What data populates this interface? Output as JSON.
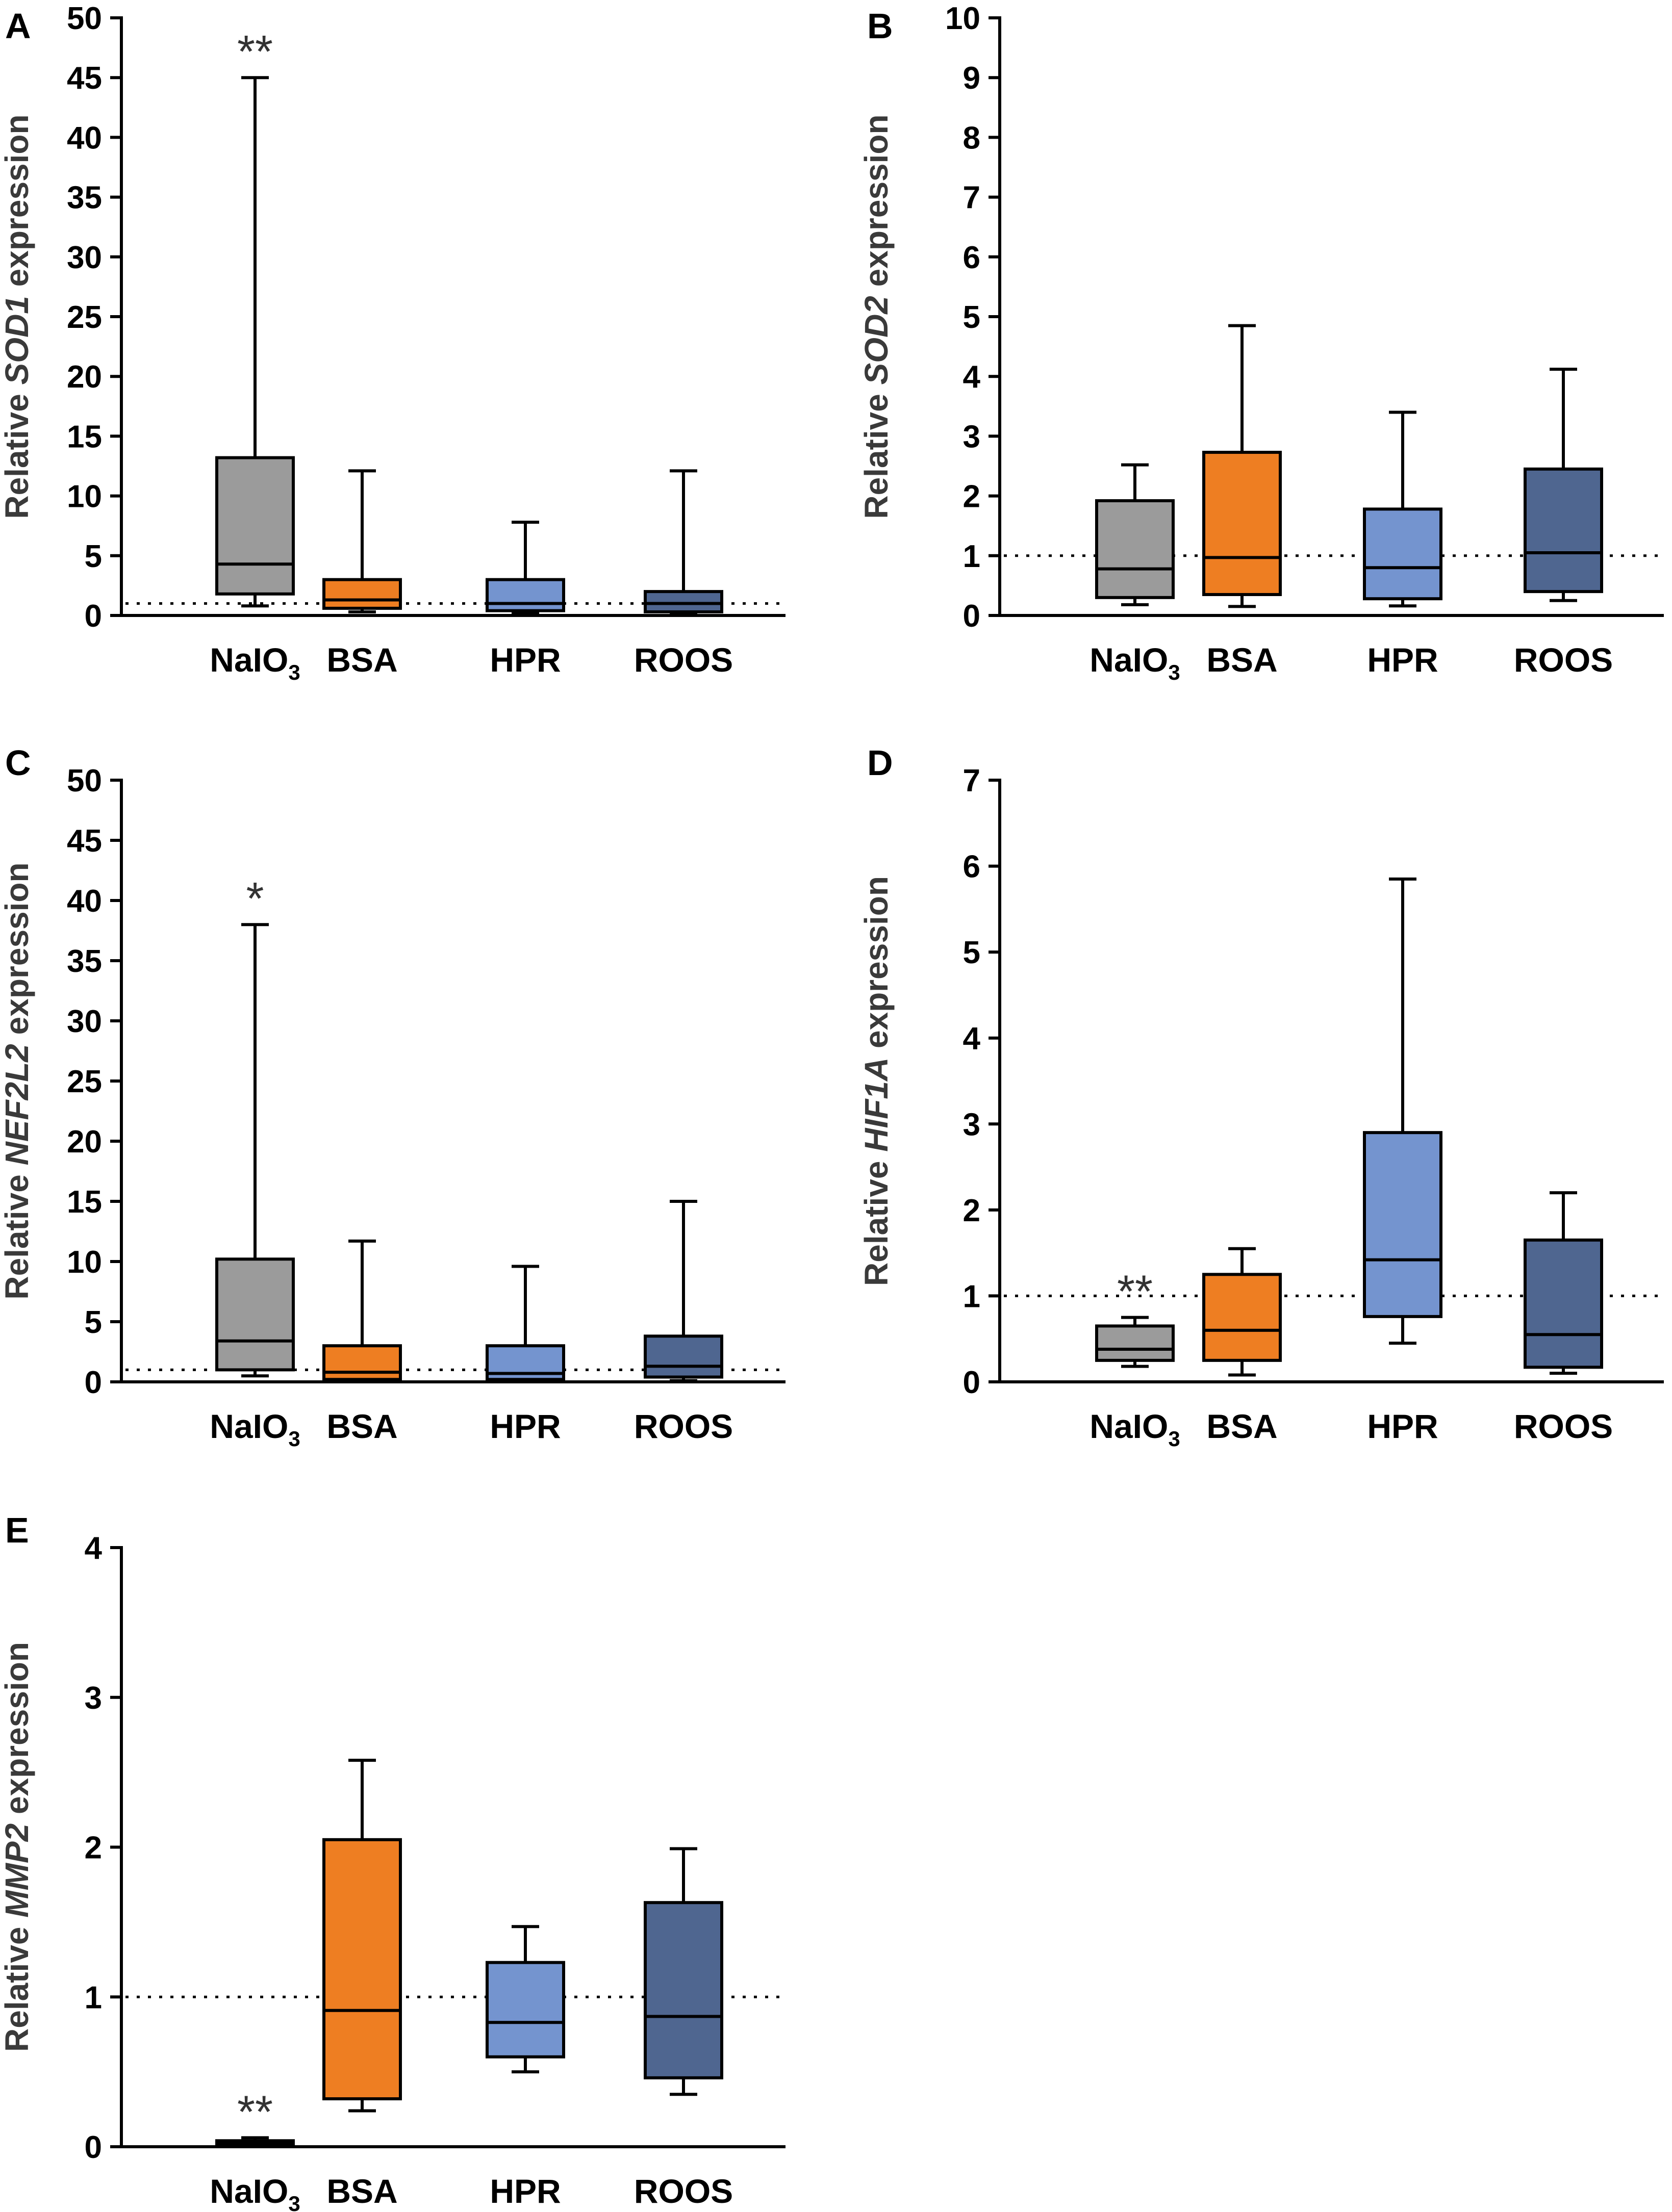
{
  "chart_data": [
    {
      "panel": "A",
      "type": "box",
      "ylabel_pre": "Relative ",
      "ylabel_gene": "SOD1",
      "ylabel_post": " expression",
      "ylim": [
        0,
        50
      ],
      "yticks": [
        0,
        5,
        10,
        15,
        20,
        25,
        30,
        35,
        40,
        45,
        50
      ],
      "reference_line": 1,
      "categories": [
        "NaIO3",
        "BSA",
        "HPR",
        "ROOS"
      ],
      "boxes": [
        {
          "category": "NaIO3",
          "min": 0.8,
          "q1": 1.8,
          "median": 4.3,
          "q3": 13.2,
          "max": 45.0,
          "color": "#9b9b9b",
          "annotation": "**"
        },
        {
          "category": "BSA",
          "min": 0.3,
          "q1": 0.6,
          "median": 1.3,
          "q3": 3.0,
          "max": 12.1,
          "color": "#ee7e22",
          "annotation": ""
        },
        {
          "category": "HPR",
          "min": 0.2,
          "q1": 0.4,
          "median": 1.0,
          "q3": 3.0,
          "max": 7.8,
          "color": "#7494cf",
          "annotation": ""
        },
        {
          "category": "ROOS",
          "min": 0.1,
          "q1": 0.3,
          "median": 1.0,
          "q3": 2.0,
          "max": 12.1,
          "color": "#4f6690",
          "annotation": ""
        }
      ]
    },
    {
      "panel": "B",
      "type": "box",
      "ylabel_pre": "Relative ",
      "ylabel_gene": "SOD2",
      "ylabel_post": " expression",
      "ylim": [
        0,
        10
      ],
      "yticks": [
        0,
        1,
        2,
        3,
        4,
        5,
        6,
        7,
        8,
        9,
        10
      ],
      "reference_line": 1,
      "categories": [
        "NaIO3",
        "BSA",
        "HPR",
        "ROOS"
      ],
      "boxes": [
        {
          "category": "NaIO3",
          "min": 0.18,
          "q1": 0.3,
          "median": 0.78,
          "q3": 1.92,
          "max": 2.52,
          "color": "#9b9b9b",
          "annotation": ""
        },
        {
          "category": "BSA",
          "min": 0.15,
          "q1": 0.35,
          "median": 0.97,
          "q3": 2.73,
          "max": 4.85,
          "color": "#ee7e22",
          "annotation": ""
        },
        {
          "category": "HPR",
          "min": 0.16,
          "q1": 0.28,
          "median": 0.8,
          "q3": 1.78,
          "max": 3.4,
          "color": "#7494cf",
          "annotation": ""
        },
        {
          "category": "ROOS",
          "min": 0.25,
          "q1": 0.4,
          "median": 1.05,
          "q3": 2.45,
          "max": 4.12,
          "color": "#4f6690",
          "annotation": ""
        }
      ]
    },
    {
      "panel": "C",
      "type": "box",
      "ylabel_pre": "Relative ",
      "ylabel_gene": "NEF2L2",
      "ylabel_post": " expression",
      "ylim": [
        0,
        50
      ],
      "yticks": [
        0,
        5,
        10,
        15,
        20,
        25,
        30,
        35,
        40,
        45,
        50
      ],
      "reference_line": 1,
      "categories": [
        "NaIO3",
        "BSA",
        "HPR",
        "ROOS"
      ],
      "boxes": [
        {
          "category": "NaIO3",
          "min": 0.5,
          "q1": 1.0,
          "median": 3.4,
          "q3": 10.2,
          "max": 38.0,
          "color": "#9b9b9b",
          "annotation": "*"
        },
        {
          "category": "BSA",
          "min": 0.1,
          "q1": 0.2,
          "median": 0.8,
          "q3": 3.0,
          "max": 11.7,
          "color": "#ee7e22",
          "annotation": ""
        },
        {
          "category": "HPR",
          "min": 0.1,
          "q1": 0.2,
          "median": 0.7,
          "q3": 3.0,
          "max": 9.6,
          "color": "#7494cf",
          "annotation": ""
        },
        {
          "category": "ROOS",
          "min": 0.1,
          "q1": 0.4,
          "median": 1.3,
          "q3": 3.8,
          "max": 15.0,
          "color": "#4f6690",
          "annotation": ""
        }
      ]
    },
    {
      "panel": "D",
      "type": "box",
      "ylabel_pre": "Relative ",
      "ylabel_gene": "HIF1A",
      "ylabel_post": " expression",
      "ylim": [
        0,
        7
      ],
      "yticks": [
        0,
        1,
        2,
        3,
        4,
        5,
        6,
        7
      ],
      "reference_line": 1,
      "categories": [
        "NaIO3",
        "BSA",
        "HPR",
        "ROOS"
      ],
      "boxes": [
        {
          "category": "NaIO3",
          "min": 0.18,
          "q1": 0.25,
          "median": 0.38,
          "q3": 0.65,
          "max": 0.75,
          "color": "#9b9b9b",
          "annotation": "**"
        },
        {
          "category": "BSA",
          "min": 0.08,
          "q1": 0.25,
          "median": 0.6,
          "q3": 1.25,
          "max": 1.55,
          "color": "#ee7e22",
          "annotation": ""
        },
        {
          "category": "HPR",
          "min": 0.45,
          "q1": 0.76,
          "median": 1.42,
          "q3": 2.9,
          "max": 5.85,
          "color": "#7494cf",
          "annotation": ""
        },
        {
          "category": "ROOS",
          "min": 0.1,
          "q1": 0.17,
          "median": 0.55,
          "q3": 1.65,
          "max": 2.2,
          "color": "#4f6690",
          "annotation": ""
        }
      ]
    },
    {
      "panel": "E",
      "type": "box",
      "ylabel_pre": "Relative ",
      "ylabel_gene": "MMP2",
      "ylabel_post": " expression",
      "ylim": [
        0,
        4
      ],
      "yticks": [
        0,
        1,
        2,
        3,
        4
      ],
      "reference_line": 1,
      "categories": [
        "NaIO3",
        "BSA",
        "HPR",
        "ROOS"
      ],
      "boxes": [
        {
          "category": "NaIO3",
          "min": 0.01,
          "q1": 0.015,
          "median": 0.025,
          "q3": 0.04,
          "max": 0.06,
          "color": "#9b9b9b",
          "annotation": "**"
        },
        {
          "category": "BSA",
          "min": 0.24,
          "q1": 0.32,
          "median": 0.91,
          "q3": 2.05,
          "max": 2.58,
          "color": "#ee7e22",
          "annotation": ""
        },
        {
          "category": "HPR",
          "min": 0.5,
          "q1": 0.6,
          "median": 0.83,
          "q3": 1.23,
          "max": 1.47,
          "color": "#7494cf",
          "annotation": ""
        },
        {
          "category": "ROOS",
          "min": 0.35,
          "q1": 0.46,
          "median": 0.87,
          "q3": 1.63,
          "max": 1.99,
          "color": "#4f6690",
          "annotation": ""
        }
      ]
    }
  ]
}
